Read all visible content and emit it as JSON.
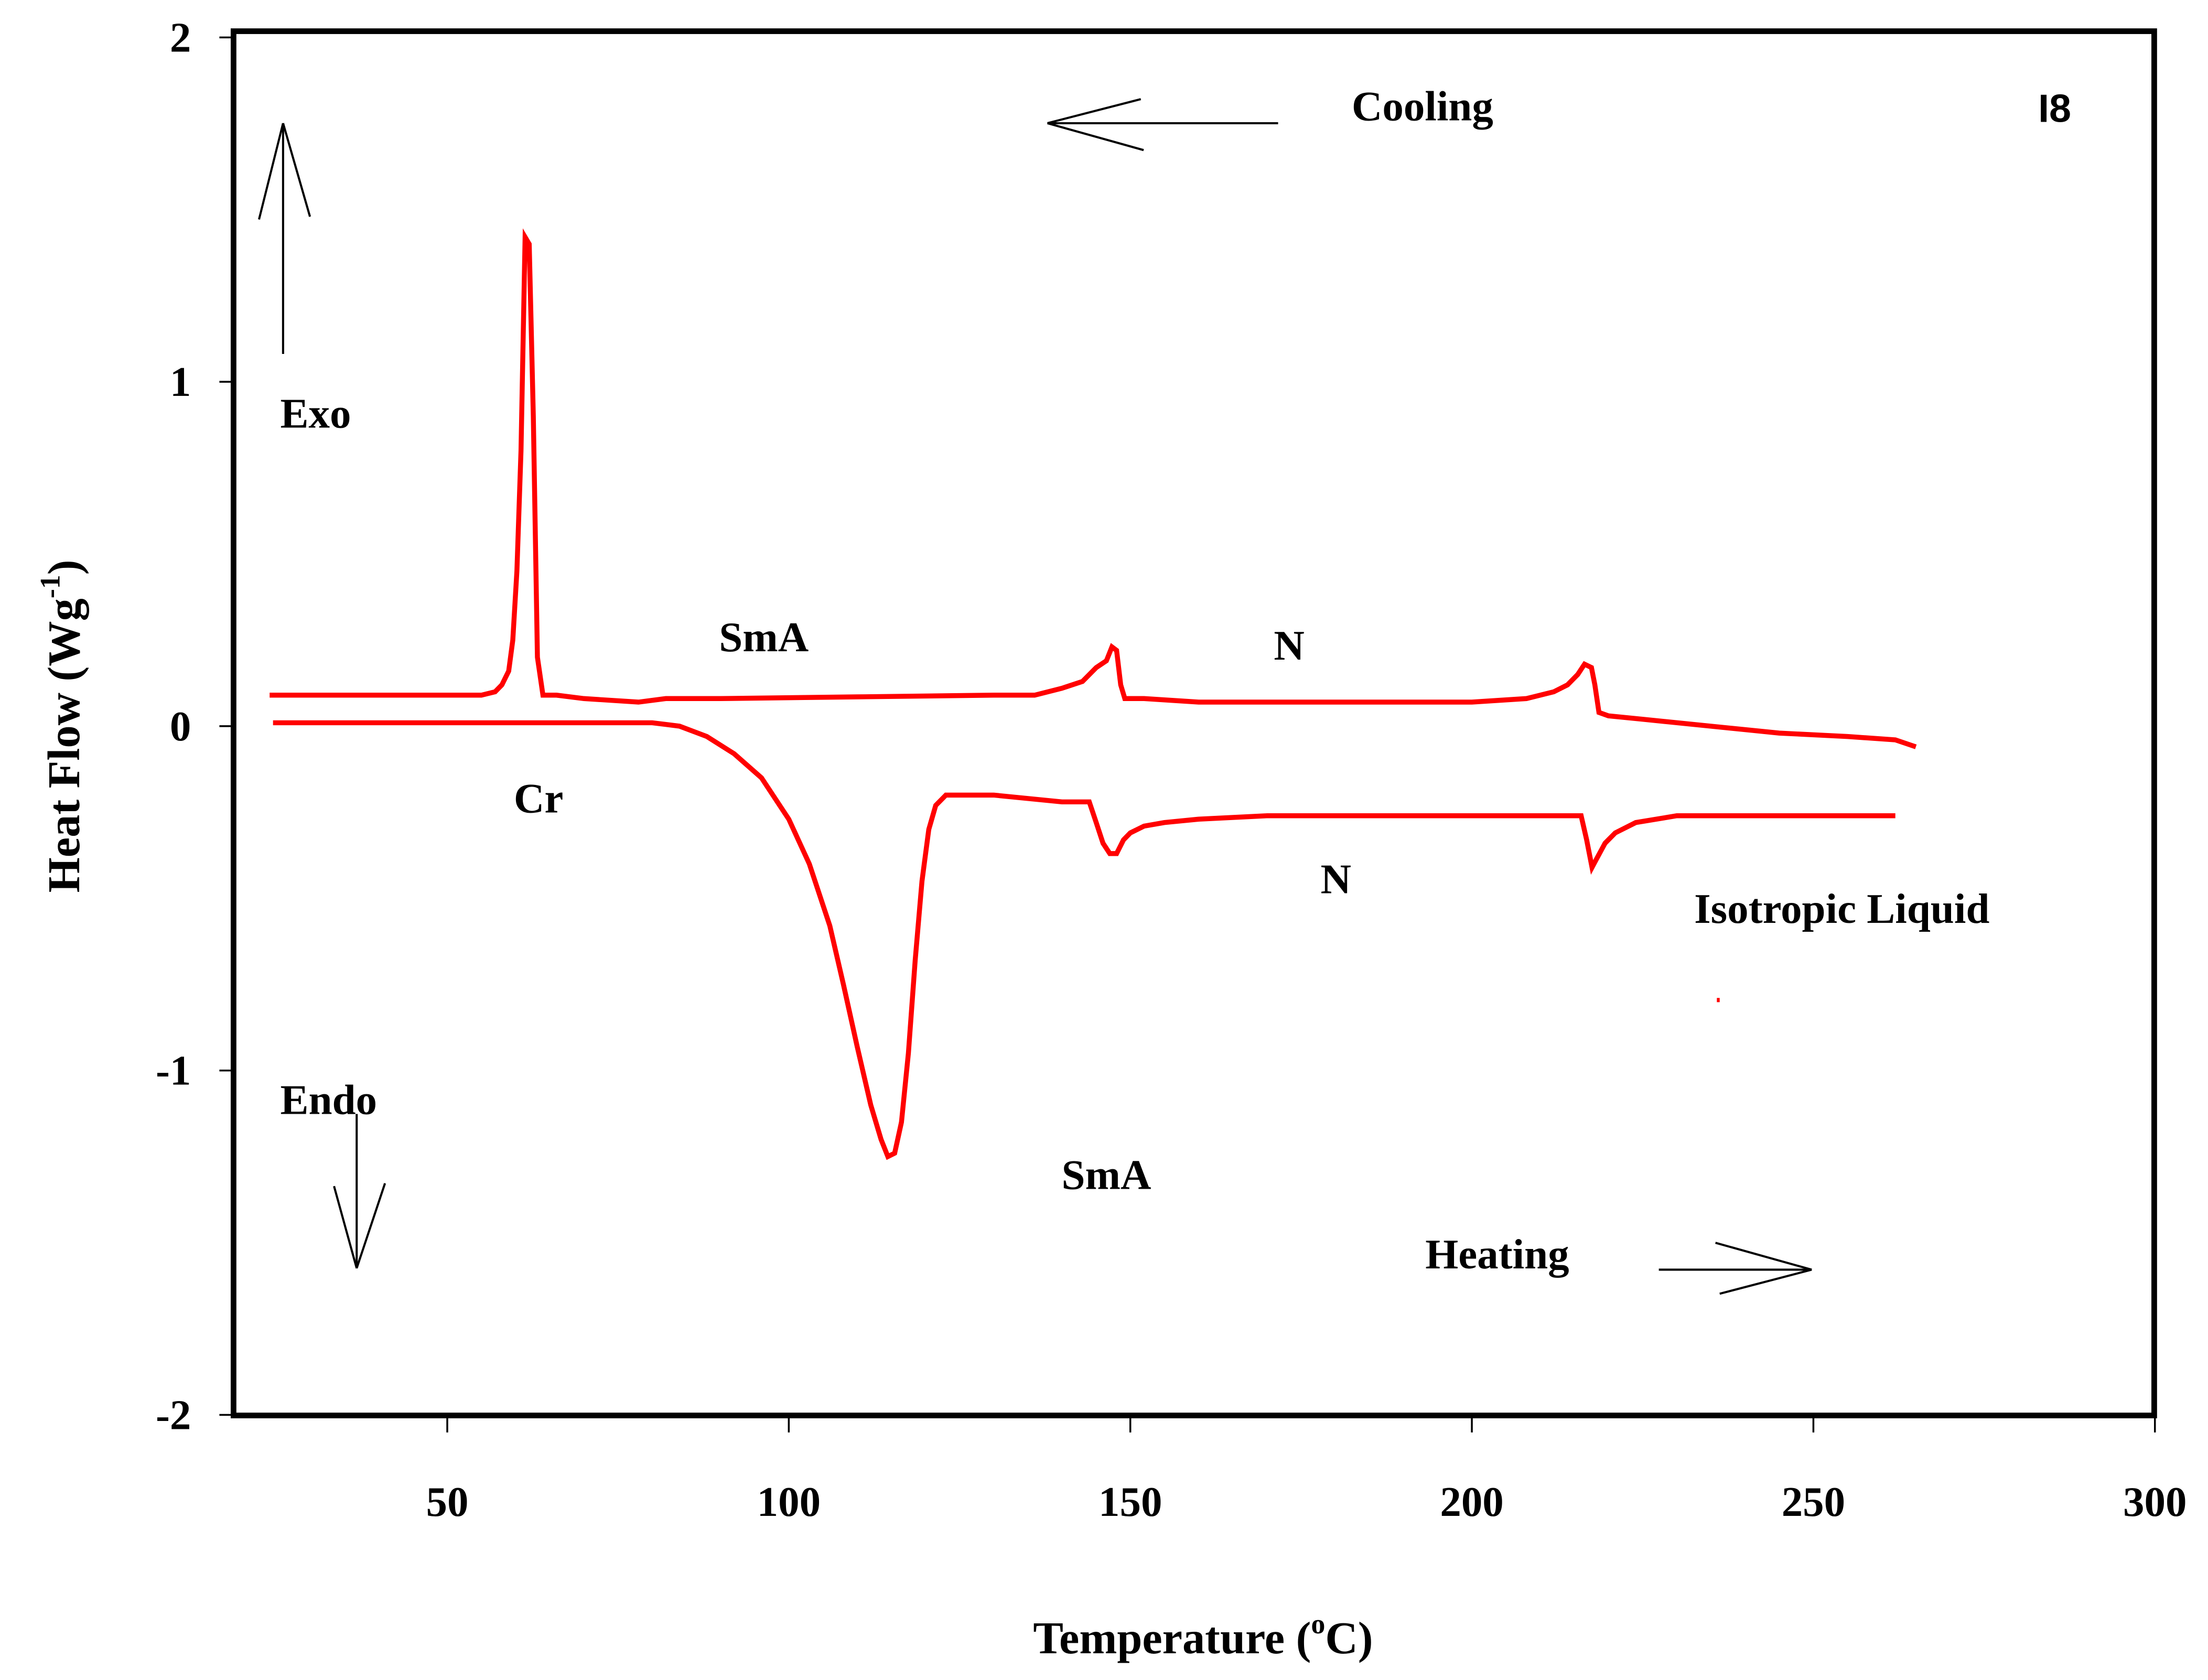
{
  "chart_data": {
    "type": "line",
    "title": "",
    "panel_label": "I8",
    "xlabel": "Temperature (°C)",
    "xlabel_main": "Temperature (",
    "xlabel_sup": "o",
    "xlabel_unit": "C)",
    "ylabel": "Heat Flow (Wg-1)",
    "ylabel_main": "Heat Flow (Wg",
    "ylabel_sup": "-1",
    "ylabel_close": ")",
    "xlim": [
      19,
      300
    ],
    "ylim": [
      -2,
      2
    ],
    "x_ticks": [
      50,
      100,
      150,
      200,
      250,
      300
    ],
    "y_ticks": [
      2,
      1,
      0,
      -1,
      -2
    ],
    "grid": false,
    "legend": null,
    "line_color": "#ff0000",
    "series": [
      {
        "name": "Cooling",
        "x": [
          24,
          40,
          55,
          57,
          58,
          59,
          59.6,
          60.2,
          60.8,
          61.4,
          62,
          62.6,
          63.2,
          64,
          66,
          70,
          78,
          82,
          90,
          110,
          130,
          136,
          140,
          143,
          145,
          146.5,
          147.3,
          148,
          148.6,
          149.2,
          152,
          160,
          180,
          200,
          208,
          212,
          214,
          215.5,
          216.5,
          217.5,
          218,
          218.6,
          220,
          225,
          235,
          245,
          255,
          262,
          265
        ],
        "y": [
          0.09,
          0.09,
          0.09,
          0.1,
          0.12,
          0.16,
          0.25,
          0.45,
          0.8,
          1.42,
          1.4,
          0.9,
          0.2,
          0.09,
          0.09,
          0.08,
          0.07,
          0.08,
          0.08,
          0.085,
          0.09,
          0.09,
          0.11,
          0.13,
          0.17,
          0.19,
          0.23,
          0.22,
          0.12,
          0.08,
          0.08,
          0.07,
          0.07,
          0.07,
          0.08,
          0.1,
          0.12,
          0.15,
          0.18,
          0.17,
          0.12,
          0.04,
          0.03,
          0.02,
          0.0,
          -0.02,
          -0.03,
          -0.04,
          -0.06
        ]
      },
      {
        "name": "Heating",
        "x": [
          24.5,
          50,
          80,
          84,
          88,
          92,
          96,
          100,
          103,
          106,
          108,
          110,
          112,
          113.5,
          114.5,
          115.5,
          116.5,
          117.5,
          118.5,
          119.5,
          120.5,
          121.5,
          123,
          130,
          140,
          144,
          145,
          146,
          147,
          148,
          149,
          150,
          152,
          155,
          160,
          170,
          190,
          210,
          216,
          216.8,
          217.6,
          218.4,
          219.5,
          221,
          224,
          230,
          262
        ],
        "y": [
          0.01,
          0.01,
          0.01,
          0.0,
          -0.03,
          -0.08,
          -0.15,
          -0.27,
          -0.4,
          -0.58,
          -0.75,
          -0.93,
          -1.1,
          -1.2,
          -1.25,
          -1.24,
          -1.15,
          -0.95,
          -0.68,
          -0.45,
          -0.3,
          -0.23,
          -0.2,
          -0.2,
          -0.22,
          -0.22,
          -0.28,
          -0.34,
          -0.37,
          -0.37,
          -0.33,
          -0.31,
          -0.29,
          -0.28,
          -0.27,
          -0.26,
          -0.26,
          -0.26,
          -0.26,
          -0.33,
          -0.41,
          -0.38,
          -0.34,
          -0.31,
          -0.28,
          -0.26,
          -0.26
        ]
      }
    ],
    "annotations": [
      {
        "text": "Cooling",
        "T": 177,
        "HF": 1.77,
        "arrow": "left"
      },
      {
        "text": "Heating",
        "T": 189,
        "HF": -1.52,
        "arrow": "right"
      },
      {
        "text": "Exo",
        "T": 27,
        "HF": 0.88,
        "arrow": "up"
      },
      {
        "text": "Endo",
        "T": 27,
        "HF": -1.1,
        "arrow": "down"
      },
      {
        "text": "SmA",
        "T": 88,
        "HF": 0.23,
        "series": "Cooling"
      },
      {
        "text": "N",
        "T": 168,
        "HF": 0.21,
        "series": "Cooling"
      },
      {
        "text": "Cr",
        "T": 60,
        "HF": -0.25,
        "series": "Heating"
      },
      {
        "text": "N",
        "T": 176,
        "HF": -0.46,
        "series": "Heating"
      },
      {
        "text": "Isotropic Liquid",
        "T": 231,
        "HF": -0.57,
        "series": "Heating"
      },
      {
        "text": "SmA",
        "T": 140,
        "HF": -1.36,
        "series": "Heating"
      }
    ]
  }
}
